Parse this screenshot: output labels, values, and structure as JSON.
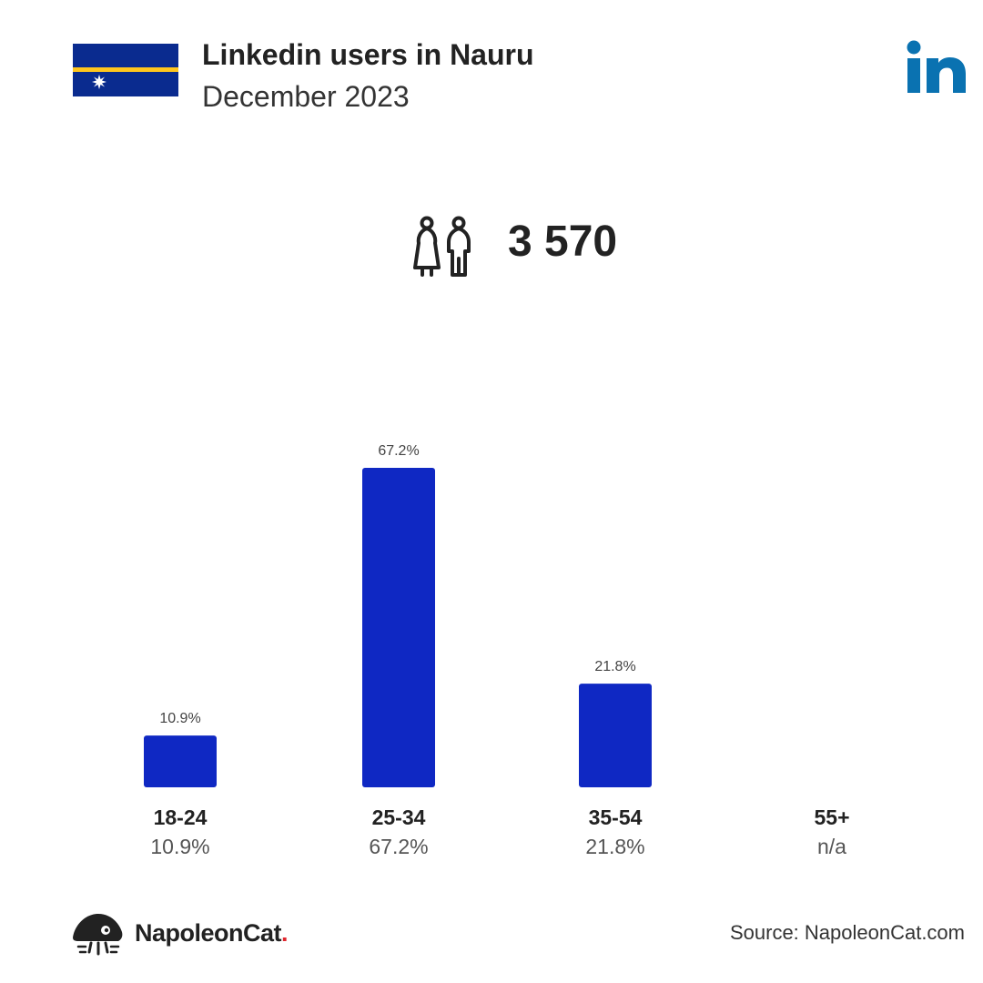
{
  "header": {
    "title": "Linkedin users in Nauru",
    "subtitle": "December 2023"
  },
  "total_users": "3 570",
  "colors": {
    "bar": "#0f28c3",
    "flag_blue": "#0a2b8f",
    "flag_stripe": "#ffc61e",
    "linkedin": "#0a72b1",
    "text": "#222222",
    "muted": "#555555"
  },
  "chart_data": {
    "type": "bar",
    "categories": [
      "18-24",
      "25-34",
      "35-54",
      "55+"
    ],
    "values": [
      10.9,
      67.2,
      21.8,
      null
    ],
    "value_labels": [
      "10.9%",
      "67.2%",
      "21.8%",
      ""
    ],
    "category_values": [
      "10.9%",
      "67.2%",
      "21.8%",
      "n/a"
    ],
    "title": "",
    "xlabel": "",
    "ylabel": "",
    "ylim": [
      0,
      67.2
    ],
    "grid": false
  },
  "footer": {
    "brand": "NapoleonCat",
    "brand_dot": ".",
    "source": "Source: NapoleonCat.com"
  }
}
